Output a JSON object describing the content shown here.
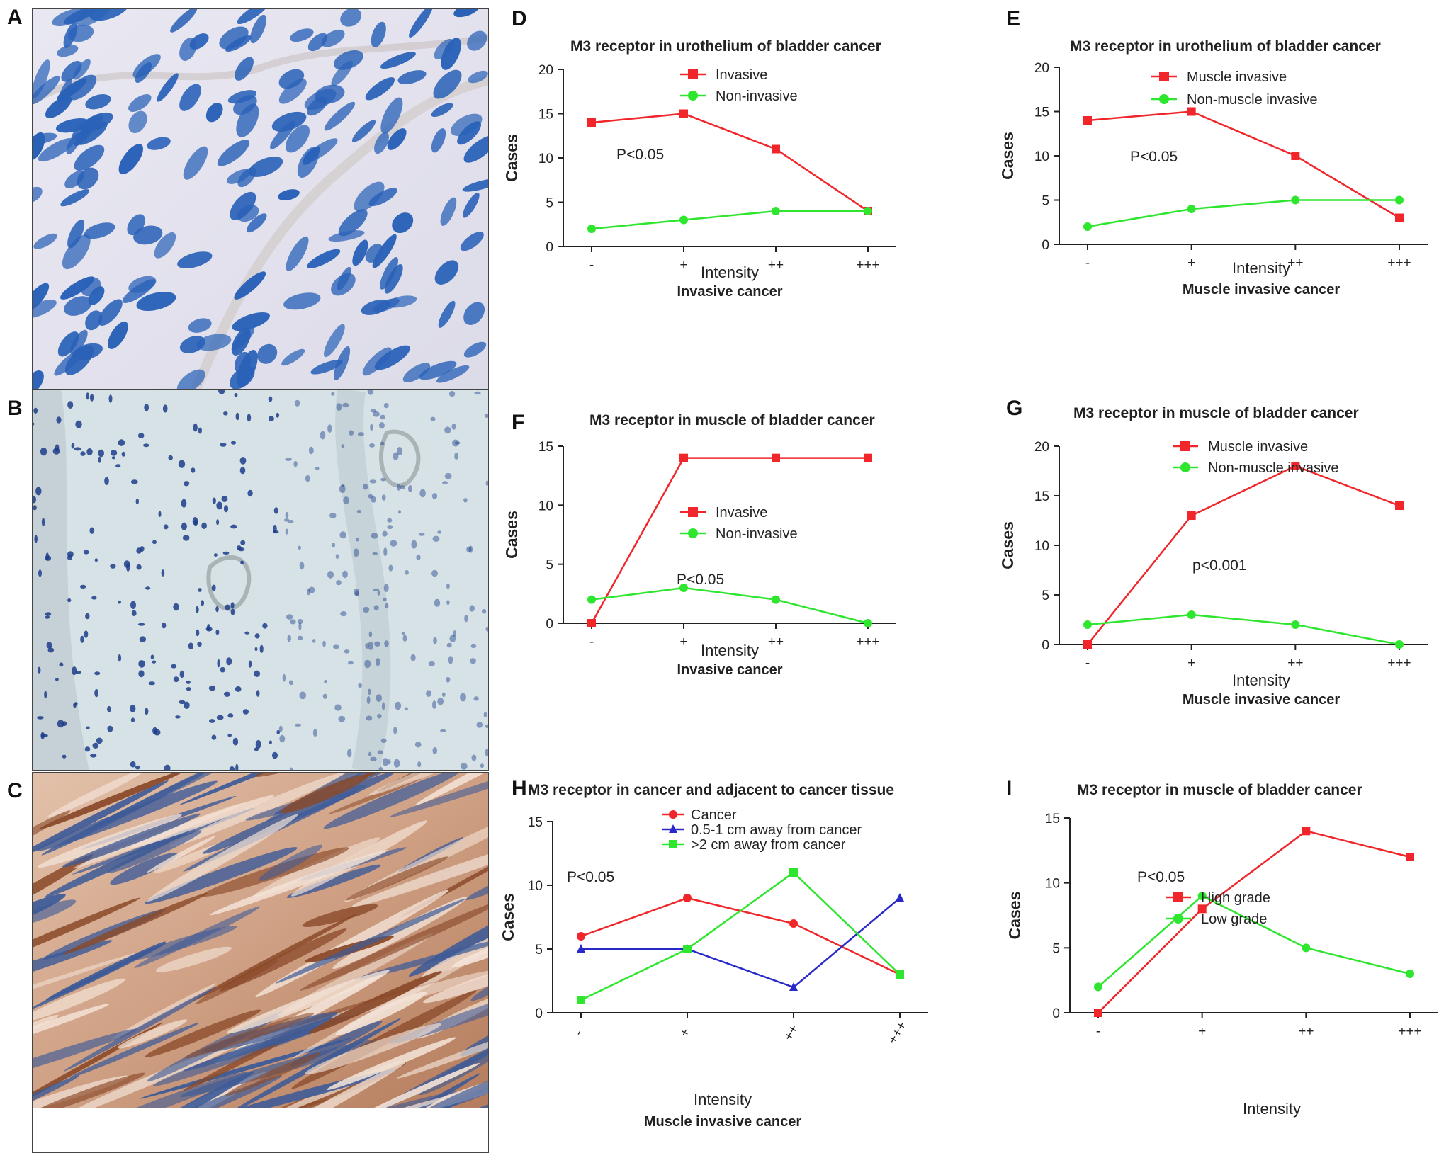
{
  "panel_letters": {
    "A": "A",
    "B": "B",
    "C": "C",
    "D": "D",
    "E": "E",
    "F": "F",
    "G": "G",
    "H": "H",
    "I": "I"
  },
  "micrographs": [
    {
      "label": "A",
      "stain": "blue-nuclei-bladder-tissue"
    },
    {
      "label": "B",
      "stain": "pale-blue-urothelium-tissue"
    },
    {
      "label": "C",
      "stain": "brown-muscle-tissue"
    }
  ],
  "colors": {
    "red": "#f0262a",
    "green": "#2ee62e",
    "blue": "#2929c9"
  },
  "chart_data": [
    {
      "id": "D",
      "type": "line",
      "title": "M3 receptor in urothelium of bladder cancer",
      "xlabel": "Intensity",
      "subtitle": "Invasive cancer",
      "ylabel": "Cases",
      "categories": [
        "-",
        "+",
        "++",
        "+++"
      ],
      "ylim": [
        0,
        20
      ],
      "yticks": [
        0,
        5,
        10,
        15,
        20
      ],
      "pvalue": "P<0.05",
      "series": [
        {
          "name": "Invasive",
          "color": "#f0262a",
          "marker": "square",
          "values": [
            14,
            15,
            11,
            4
          ]
        },
        {
          "name": "Non-invasive",
          "color": "#2ee62e",
          "marker": "circle",
          "values": [
            2,
            3,
            4,
            4
          ]
        }
      ]
    },
    {
      "id": "E",
      "type": "line",
      "title": "M3 receptor in urothelium of bladder cancer",
      "xlabel": "Intensity",
      "subtitle": "Muscle invasive cancer",
      "ylabel": "Cases",
      "categories": [
        "-",
        "+",
        "++",
        "+++"
      ],
      "ylim": [
        0,
        20
      ],
      "yticks": [
        0,
        5,
        10,
        15,
        20
      ],
      "pvalue": "P<0.05",
      "series": [
        {
          "name": "Muscle invasive",
          "color": "#f0262a",
          "marker": "square",
          "values": [
            14,
            15,
            10,
            3
          ]
        },
        {
          "name": "Non-muscle invasive",
          "color": "#2ee62e",
          "marker": "circle",
          "values": [
            2,
            4,
            5,
            5
          ]
        }
      ]
    },
    {
      "id": "F",
      "type": "line",
      "title": "M3 receptor in muscle of bladder cancer",
      "xlabel": "Intensity",
      "subtitle": "Invasive cancer",
      "ylabel": "Cases",
      "categories": [
        "-",
        "+",
        "++",
        "+++"
      ],
      "ylim": [
        0,
        15
      ],
      "yticks": [
        0,
        5,
        10,
        15
      ],
      "pvalue": "P<0.05",
      "series": [
        {
          "name": "Invasive",
          "color": "#f0262a",
          "marker": "square",
          "values": [
            0,
            14,
            14,
            14
          ]
        },
        {
          "name": "Non-invasive",
          "color": "#2ee62e",
          "marker": "circle",
          "values": [
            2,
            3,
            2,
            0
          ]
        }
      ]
    },
    {
      "id": "G",
      "type": "line",
      "title": "M3 receptor in  muscle of bladder cancer",
      "xlabel": "Intensity",
      "subtitle": "Muscle invasive cancer",
      "ylabel": "Cases",
      "categories": [
        "-",
        "+",
        "++",
        "+++"
      ],
      "ylim": [
        0,
        20
      ],
      "yticks": [
        0,
        5,
        10,
        15,
        20
      ],
      "pvalue": "p<0.001",
      "series": [
        {
          "name": "Muscle invasive",
          "color": "#f0262a",
          "marker": "square",
          "values": [
            0,
            13,
            18,
            14
          ]
        },
        {
          "name": "Non-muscle invasive",
          "color": "#2ee62e",
          "marker": "circle",
          "values": [
            2,
            3,
            2,
            0
          ]
        }
      ]
    },
    {
      "id": "H",
      "type": "line",
      "title": "M3 receptor in cancer and adjacent to cancer tissue",
      "xlabel": "Intensity",
      "subtitle": "Muscle invasive cancer",
      "ylabel": "Cases",
      "categories": [
        "-",
        "+",
        "++",
        "+++"
      ],
      "ylim": [
        0,
        15
      ],
      "yticks": [
        0,
        5,
        10,
        15
      ],
      "pvalue": "P<0.05",
      "series": [
        {
          "name": "Cancer",
          "color": "#f0262a",
          "marker": "circle",
          "values": [
            6,
            9,
            7,
            3
          ]
        },
        {
          "name": "0.5-1 cm away from cancer",
          "color": "#2929c9",
          "marker": "triangle",
          "values": [
            5,
            5,
            2,
            9
          ]
        },
        {
          "name": ">2 cm away from cancer",
          "color": "#2ee62e",
          "marker": "square",
          "values": [
            1,
            5,
            11,
            3
          ]
        }
      ]
    },
    {
      "id": "I",
      "type": "line",
      "title": "M3 receptor in muscle of bladder cancer",
      "xlabel": "Intensity",
      "subtitle": "",
      "ylabel": "Cases",
      "categories": [
        "-",
        "+",
        "++",
        "+++"
      ],
      "ylim": [
        0,
        15
      ],
      "yticks": [
        0,
        5,
        10,
        15
      ],
      "pvalue": "P<0.05",
      "series": [
        {
          "name": "High grade",
          "color": "#f0262a",
          "marker": "square",
          "values": [
            0,
            8,
            14,
            12
          ]
        },
        {
          "name": "Low grade",
          "color": "#2ee62e",
          "marker": "circle",
          "values": [
            2,
            9,
            5,
            3
          ]
        }
      ]
    }
  ]
}
